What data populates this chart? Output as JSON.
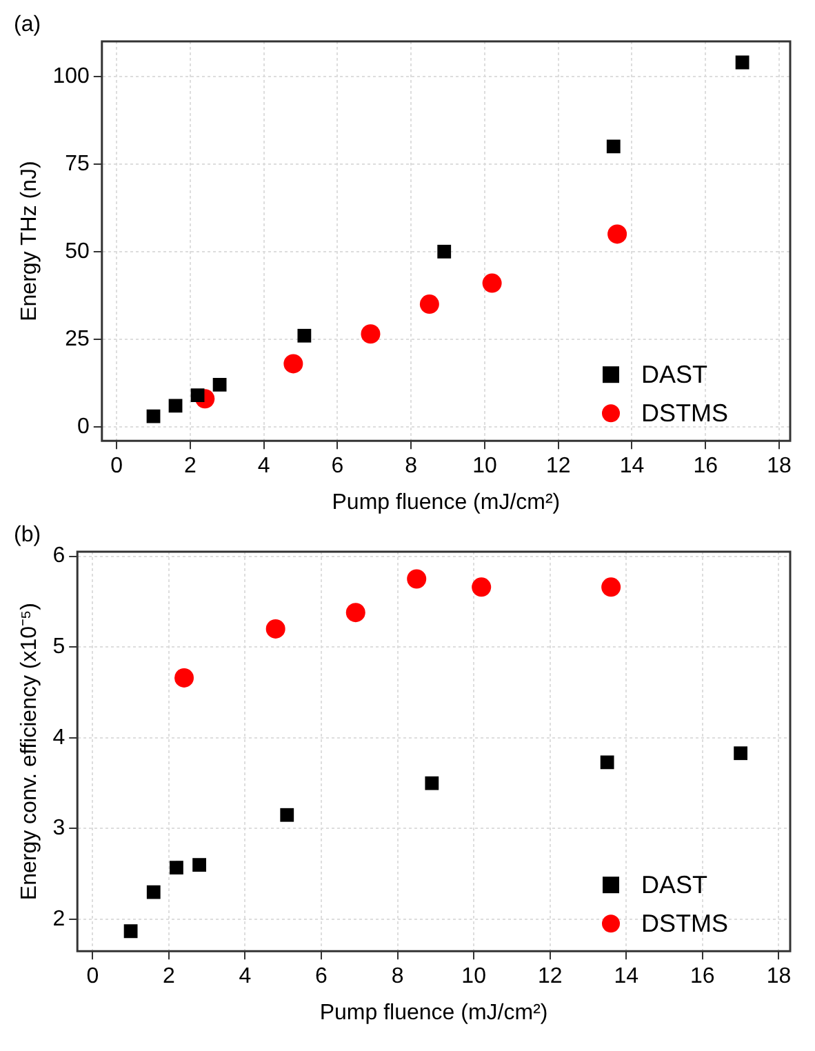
{
  "chart_data": [
    {
      "type": "scatter",
      "annotations": [
        "(a)"
      ],
      "xlabel": "Pump fluence (mJ/cm²)",
      "ylabel": "Energy THz (nJ)",
      "xlim": [
        -0.4,
        18.3
      ],
      "xticks": [
        0,
        2,
        4,
        6,
        8,
        10,
        12,
        14,
        16,
        18
      ],
      "ylim": [
        -4,
        110
      ],
      "yticks": [
        0,
        25,
        50,
        75,
        100
      ],
      "grid": true,
      "legend": "bottom right",
      "series": [
        {
          "name": "DAST",
          "color": "#000000",
          "marker": "square",
          "x": [
            1.0,
            1.6,
            2.2,
            2.8,
            5.1,
            8.9,
            13.5,
            17.0
          ],
          "values": [
            3,
            6,
            9,
            12,
            26,
            50,
            80,
            104
          ]
        },
        {
          "name": "DSTMS",
          "color": "#ff0000",
          "marker": "circle",
          "x": [
            2.4,
            4.8,
            6.9,
            8.5,
            10.2,
            13.6
          ],
          "values": [
            8,
            18,
            26.5,
            35,
            41,
            55
          ]
        }
      ]
    },
    {
      "type": "scatter",
      "annotations": [
        "(b)"
      ],
      "xlabel": "Pump fluence (mJ/cm²)",
      "ylabel": "Energy conv. efficiency (x10⁻⁵)",
      "xlim": [
        -0.4,
        18.3
      ],
      "xticks": [
        0,
        2,
        4,
        6,
        8,
        10,
        12,
        14,
        16,
        18
      ],
      "ylim": [
        1.65,
        6.05
      ],
      "yticks": [
        2,
        3,
        4,
        5,
        6
      ],
      "grid": true,
      "legend": "bottom right",
      "series": [
        {
          "name": "DAST",
          "color": "#000000",
          "marker": "square",
          "x": [
            1.0,
            1.6,
            2.2,
            2.8,
            5.1,
            8.9,
            13.5,
            17.0
          ],
          "values": [
            1.87,
            2.3,
            2.57,
            2.6,
            3.15,
            3.5,
            3.73,
            3.83
          ]
        },
        {
          "name": "DSTMS",
          "color": "#ff0000",
          "marker": "circle",
          "x": [
            2.4,
            4.8,
            6.9,
            8.5,
            10.2,
            13.6
          ],
          "values": [
            4.66,
            5.2,
            5.38,
            5.75,
            5.66,
            5.66
          ]
        }
      ]
    }
  ]
}
